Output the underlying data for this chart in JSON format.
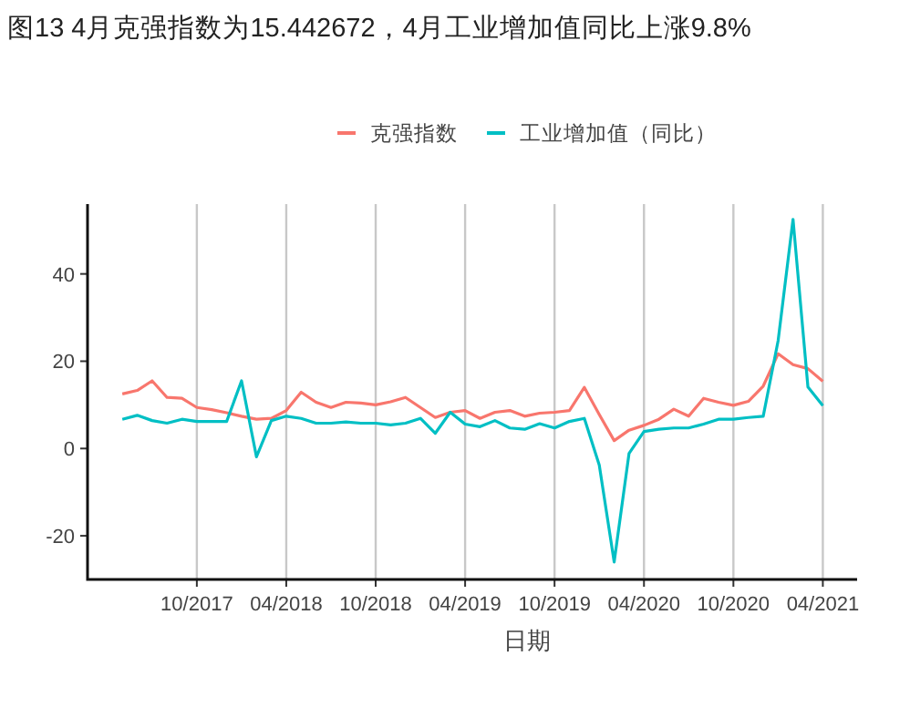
{
  "chart_data": {
    "type": "line",
    "title": "图13 4月克强指数为15.442672，4月工业增加值同比上涨9.8%",
    "xlabel": "日期",
    "x": [
      "2017-05",
      "2017-06",
      "2017-07",
      "2017-08",
      "2017-09",
      "2017-10",
      "2017-11",
      "2017-12",
      "2018-01",
      "2018-02",
      "2018-03",
      "2018-04",
      "2018-05",
      "2018-06",
      "2018-07",
      "2018-08",
      "2018-09",
      "2018-10",
      "2018-11",
      "2018-12",
      "2019-01",
      "2019-02",
      "2019-03",
      "2019-04",
      "2019-05",
      "2019-06",
      "2019-07",
      "2019-08",
      "2019-09",
      "2019-10",
      "2019-11",
      "2019-12",
      "2020-01",
      "2020-02",
      "2020-03",
      "2020-04",
      "2020-05",
      "2020-06",
      "2020-07",
      "2020-08",
      "2020-09",
      "2020-10",
      "2020-11",
      "2020-12",
      "2021-01",
      "2021-02",
      "2021-03",
      "2021-04"
    ],
    "series": [
      {
        "name": "克强指数",
        "color": "#f8766d",
        "values": [
          12.5,
          13.3,
          15.5,
          11.7,
          11.5,
          9.4,
          8.9,
          8.2,
          7.4,
          6.7,
          6.9,
          8.7,
          12.9,
          10.6,
          9.4,
          10.6,
          10.4,
          10.0,
          10.7,
          11.7,
          9.4,
          7.1,
          8.3,
          8.7,
          6.9,
          8.3,
          8.7,
          7.4,
          8.1,
          8.3,
          8.7,
          14.0,
          7.8,
          1.8,
          4.2,
          5.3,
          6.7,
          9.0,
          7.4,
          11.5,
          10.6,
          9.9,
          10.8,
          14.3,
          21.7,
          19.2,
          18.3,
          15.4
        ]
      },
      {
        "name": "工业增加值（同比）",
        "color": "#00bfc4",
        "values": [
          6.7,
          7.6,
          6.4,
          5.8,
          6.7,
          6.2,
          6.2,
          6.2,
          15.5,
          -1.9,
          6.4,
          7.4,
          6.9,
          5.8,
          5.8,
          6.1,
          5.8,
          5.8,
          5.4,
          5.8,
          6.9,
          3.5,
          8.3,
          5.6,
          5.0,
          6.4,
          4.7,
          4.4,
          5.7,
          4.7,
          6.2,
          6.9,
          -3.8,
          -26,
          -1.1,
          3.9,
          4.4,
          4.7,
          4.7,
          5.6,
          6.7,
          6.7,
          7.1,
          7.4,
          24.7,
          52.5,
          14.1,
          9.8
        ]
      }
    ],
    "xlim": [
      "2017-02-21",
      "2021-06-10"
    ],
    "xticks": [
      {
        "value": "2017-10",
        "label": "10/2017"
      },
      {
        "value": "2018-04",
        "label": "04/2018"
      },
      {
        "value": "2018-10",
        "label": "10/2018"
      },
      {
        "value": "2019-04",
        "label": "04/2019"
      },
      {
        "value": "2019-10",
        "label": "10/2019"
      },
      {
        "value": "2020-04",
        "label": "04/2020"
      },
      {
        "value": "2020-10",
        "label": "10/2020"
      },
      {
        "value": "2021-04",
        "label": "04/2021"
      }
    ],
    "ylim": [
      -30,
      56
    ],
    "yticks": [
      -20,
      0,
      20,
      40
    ],
    "grid": "x",
    "legend": "top",
    "line_style": "solid",
    "marker": "none"
  }
}
